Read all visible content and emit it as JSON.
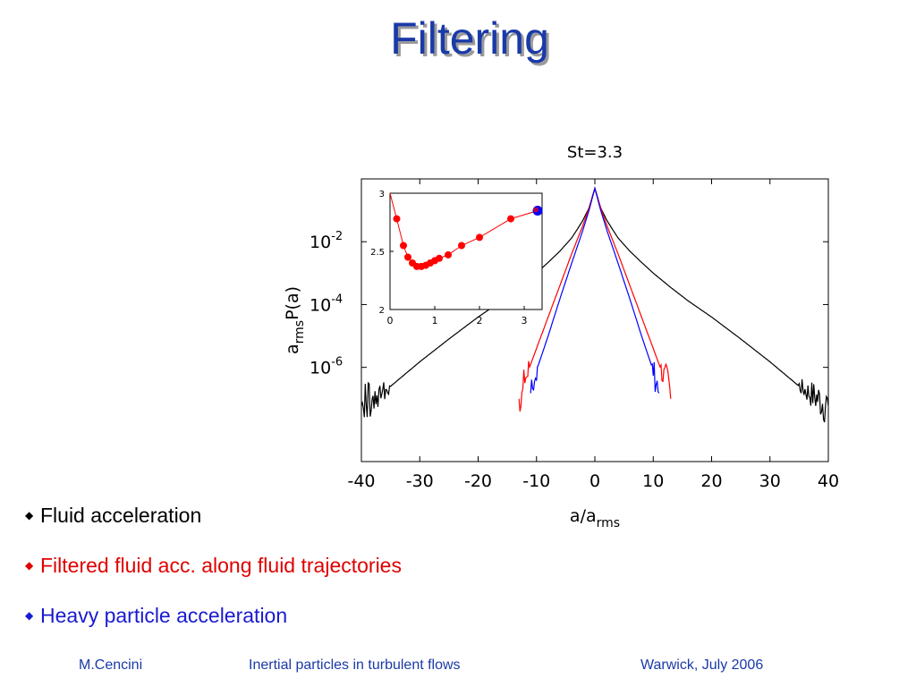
{
  "slide": {
    "title": "Filtering"
  },
  "bullets": [
    {
      "text": "Fluid acceleration",
      "color": "#000000",
      "icon": "diamond-bullet"
    },
    {
      "text": "Filtered fluid acc. along fluid trajectories",
      "color": "#e00000",
      "icon": "diamond-bullet"
    },
    {
      "text": "Heavy particle acceleration",
      "color": "#1a1ad0",
      "icon": "diamond-bullet"
    }
  ],
  "footer": {
    "author": "M.Cencini",
    "talk": "Inertial particles in turbulent flows",
    "venue": "Warwick, July 2006"
  },
  "chart_data": [
    {
      "type": "line",
      "title": "St=3.3",
      "xlabel": "a/a",
      "xlabel_sub": "rms",
      "ylabel_pre": "a",
      "ylabel_sub": "rms",
      "ylabel_post": "P(a)",
      "xlim": [
        -40,
        40
      ],
      "ylog": true,
      "ylim": [
        1e-09,
        1
      ],
      "xticks": [
        -40,
        -30,
        -20,
        -10,
        0,
        10,
        20,
        30,
        40
      ],
      "ytick_labels": [
        {
          "value": 0.01,
          "base": "10",
          "exp": "-2"
        },
        {
          "value": 0.0001,
          "base": "10",
          "exp": "-4"
        },
        {
          "value": 1e-06,
          "base": "10",
          "exp": "-6"
        }
      ],
      "colors": {
        "fluid": "#000000",
        "filtered": "#ff0000",
        "heavy": "#0000ff"
      },
      "series": [
        {
          "key": "fluid",
          "x": [
            0,
            1,
            2,
            3,
            4,
            6,
            8,
            10,
            13,
            16,
            20,
            25,
            30,
            35,
            40
          ],
          "y": [
            0.5,
            0.12,
            0.05,
            0.025,
            0.013,
            0.005,
            0.0022,
            0.001,
            0.00035,
            0.00013,
            4e-05,
            8e-06,
            1.5e-06,
            2.5e-07,
            6e-08
          ]
        },
        {
          "key": "filtered",
          "x": [
            0,
            1,
            2,
            4,
            6,
            8,
            10,
            11.5,
            12.5,
            13
          ],
          "y": [
            0.5,
            0.12,
            0.035,
            0.004,
            0.0004,
            4e-05,
            4e-06,
            7e-07,
            2e-07,
            1e-07
          ]
        },
        {
          "key": "heavy",
          "x": [
            0,
            1,
            2,
            4,
            6,
            8,
            9.5,
            10.5,
            11
          ],
          "y": [
            0.5,
            0.1,
            0.025,
            0.002,
            0.00015,
            1e-05,
            1.5e-06,
            4e-07,
            1.5e-07
          ]
        }
      ]
    },
    {
      "type": "line",
      "title": "",
      "xlim": [
        0,
        3.4
      ],
      "ylim": [
        2,
        3
      ],
      "xticks": [
        0,
        1,
        2,
        3
      ],
      "yticks": [
        2,
        2.5,
        3
      ],
      "ytick_labels": [
        "2",
        "2.5",
        "3"
      ],
      "series": [
        {
          "key": "inset-red",
          "color": "#ff0000",
          "x": [
            0,
            0.15,
            0.3,
            0.4,
            0.5,
            0.6,
            0.7,
            0.8,
            0.9,
            1.0,
            1.1,
            1.3,
            1.6,
            2.0,
            2.7,
            3.3
          ],
          "y": [
            3.0,
            2.78,
            2.55,
            2.45,
            2.4,
            2.37,
            2.37,
            2.38,
            2.4,
            2.42,
            2.44,
            2.47,
            2.55,
            2.62,
            2.78,
            2.85
          ]
        }
      ],
      "highlight_point": {
        "x": 3.3,
        "y": 2.85,
        "color": "#0000ff"
      }
    }
  ]
}
